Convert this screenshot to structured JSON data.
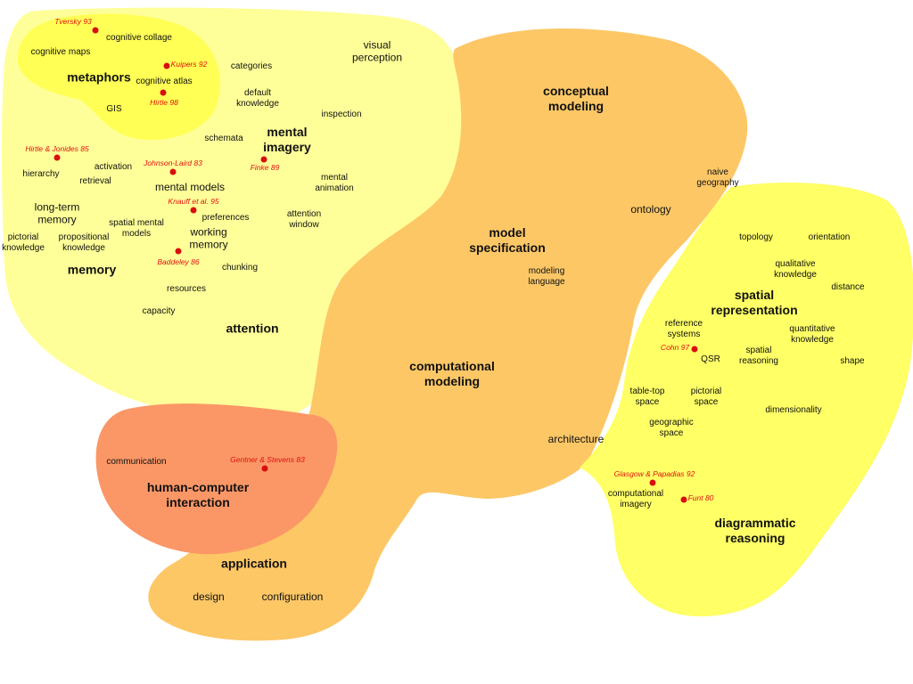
{
  "colors": {
    "cognition_region": "#ffff99",
    "metaphors_region": "#ffff55",
    "modeling_region": "#fdc766",
    "hci_region": "#fb9766",
    "spatial_region": "#ffff66",
    "reference_red": "#d80f0f"
  },
  "regions": {
    "metaphors": "metaphors",
    "memory": "memory",
    "mental_imagery": "mental\nimagery",
    "attention": "attention",
    "conceptual_modeling": "conceptual\nmodeling",
    "model_specification": "model\nspecification",
    "computational_modeling": "computational\nmodeling",
    "hci": "human-computer\ninteraction",
    "application": "application",
    "spatial_representation": "spatial\nrepresentation",
    "diagrammatic_reasoning": "diagrammatic\nreasoning"
  },
  "terms": {
    "cognitive_collage": "cognitive collage",
    "cognitive_maps": "cognitive maps",
    "categories": "categories",
    "cognitive_atlas": "cognitive atlas",
    "gis": "GIS",
    "default_knowledge": "default\nknowledge",
    "visual_perception": "visual\nperception",
    "inspection": "inspection",
    "schemata": "schemata",
    "hierarchy": "hierarchy",
    "activation": "activation",
    "retrieval": "retrieval",
    "mental_models": "mental models",
    "mental_animation": "mental\nanimation",
    "long_term_memory": "long-term\nmemory",
    "spatial_mental_models": "spatial mental\nmodels",
    "preferences": "preferences",
    "attention_window": "attention\nwindow",
    "working_memory": "working\nmemory",
    "pictorial_knowledge": "pictorial\nknowledge",
    "propositional_knowledge": "propositional\nknowledge",
    "chunking": "chunking",
    "resources": "resources",
    "capacity": "capacity",
    "naive_geography": "naive\ngeography",
    "ontology": "ontology",
    "modeling_language": "modeling\nlanguage",
    "topology": "topology",
    "orientation": "orientation",
    "qualitative_knowledge": "qualitative\nknowledge",
    "distance": "distance",
    "reference_systems": "reference\nsystems",
    "quantitative_knowledge": "quantitative\nknowledge",
    "qsr": "QSR",
    "spatial_reasoning": "spatial\nreasoning",
    "shape": "shape",
    "table_top_space": "table-top\nspace",
    "pictorial_space": "pictorial\nspace",
    "dimensionality": "dimensionality",
    "geographic_space": "geographic\nspace",
    "architecture": "architecture",
    "communication": "communication",
    "computational_imagery": "computational\nimagery",
    "design": "design",
    "configuration": "configuration"
  },
  "references": {
    "tversky_93": "Tversky 93",
    "kuipers_92": "Kuipers 92",
    "hirtle_98": "Hirtle 98",
    "hirtle_jonides_85": "Hirtle & Jonides 85",
    "johnson_laird_83": "Johnson-Laird 83",
    "finke_89": "Finke 89",
    "knauff_95": "Knauff et al. 95",
    "baddeley_86": "Baddeley 86",
    "cohn_97": "Cohn 97",
    "gentner_stevens_83": "Gentner & Stevens 83",
    "glasgow_papadias_92": "Glasgow & Papadias 92",
    "funt_80": "Funt 80"
  }
}
